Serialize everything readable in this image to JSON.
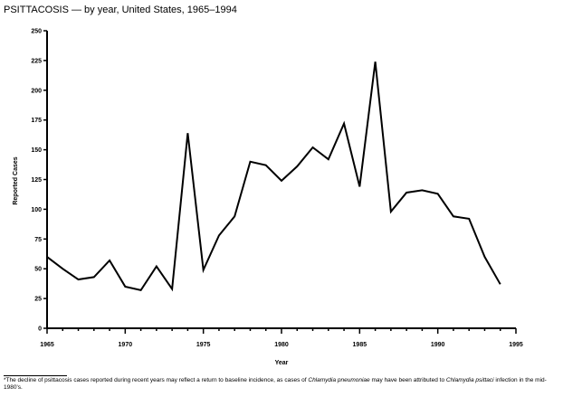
{
  "chart_data": {
    "type": "line",
    "title": "PSITTACOSIS — by year, United States, 1965–1994",
    "xlabel": "Year",
    "ylabel": "Reported Cases",
    "xlim": [
      1965,
      1995
    ],
    "ylim": [
      0,
      250
    ],
    "xticks": [
      "1965",
      "1970",
      "1975",
      "1980",
      "1985",
      "1990",
      "1995"
    ],
    "yticks": [
      "0",
      "25",
      "50",
      "75",
      "100",
      "125",
      "150",
      "175",
      "200",
      "225",
      "250"
    ],
    "grid": false,
    "line_color": "#000000",
    "x": [
      1965,
      1966,
      1967,
      1968,
      1969,
      1970,
      1971,
      1972,
      1973,
      1974,
      1975,
      1976,
      1977,
      1978,
      1979,
      1980,
      1981,
      1982,
      1983,
      1984,
      1985,
      1986,
      1987,
      1988,
      1989,
      1990,
      1991,
      1992,
      1993,
      1994
    ],
    "values": [
      60,
      50,
      41,
      43,
      57,
      35,
      32,
      52,
      33,
      164,
      49,
      78,
      94,
      140,
      137,
      124,
      136,
      152,
      142,
      172,
      119,
      224,
      98,
      114,
      116,
      113,
      94,
      92,
      60,
      37
    ]
  },
  "footnote": {
    "marker": "*",
    "text_1": "The decline of psittacosis cases reported during recent years may reflect a return to baseline incidence, as cases of ",
    "italic_1": "Chlamydia pneumoniae",
    "text_2": " may have been attributed to ",
    "italic_2": "Chlamydia psittaci",
    "text_3": " infection in the mid-1980's."
  }
}
